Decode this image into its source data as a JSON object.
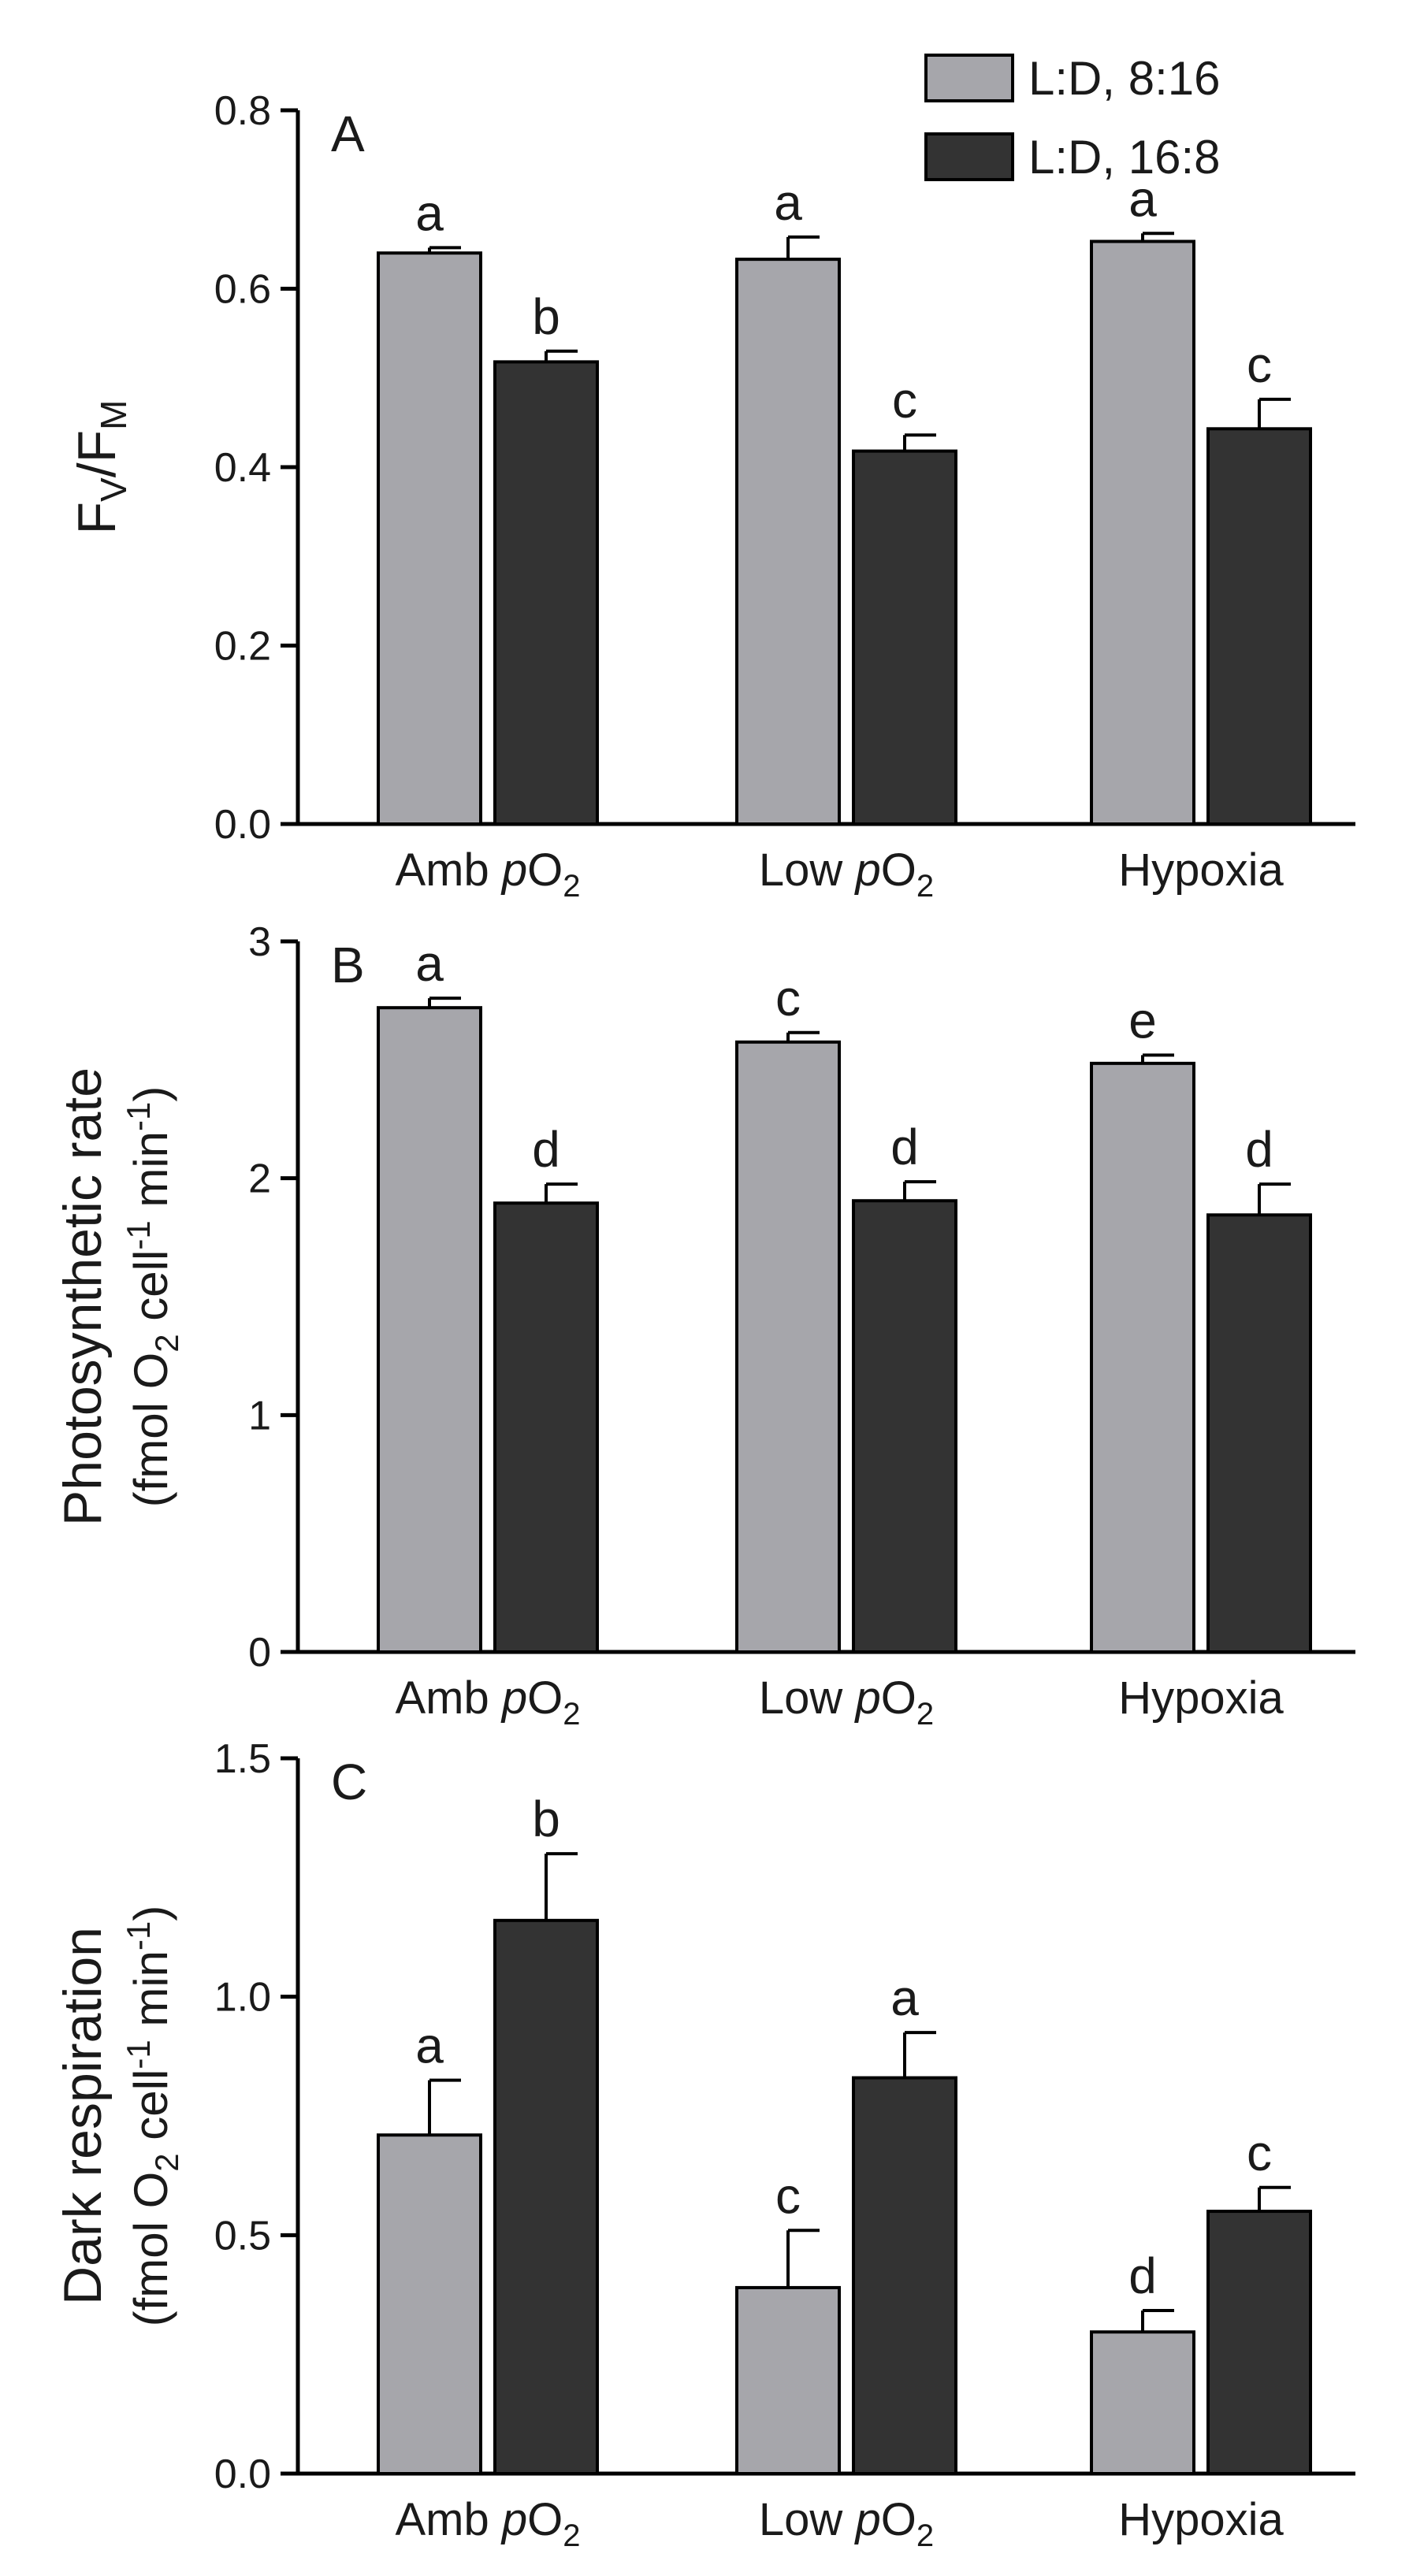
{
  "colors": {
    "series1": "#a6a6ab",
    "series2": "#333333"
  },
  "legend": [
    {
      "label": "L:D, 8:16",
      "color": "#a6a6ab"
    },
    {
      "label": "L:D, 16:8",
      "color": "#333333"
    }
  ],
  "chart_data": [
    {
      "type": "bar",
      "panel": "A",
      "ylabel_main": "F",
      "ylabel_sub1": "V",
      "ylabel_mid": "/F",
      "ylabel_sub2": "M",
      "ylim": [
        0,
        0.8
      ],
      "yticks": [
        "0.0",
        "0.2",
        "0.4",
        "0.6",
        "0.8"
      ],
      "categories": [
        {
          "pre": "Amb ",
          "italic": "p",
          "mid": "O",
          "sub": "2"
        },
        {
          "pre": "Low ",
          "italic": "p",
          "mid": "O",
          "sub": "2"
        },
        {
          "pre": "Hypoxia",
          "italic": "",
          "mid": "",
          "sub": ""
        }
      ],
      "series": [
        {
          "name": "L:D, 8:16",
          "values": [
            0.64,
            0.633,
            0.653
          ],
          "errors": [
            0.006,
            0.025,
            0.009
          ],
          "letters": [
            "a",
            "a",
            "a"
          ]
        },
        {
          "name": "L:D, 16:8",
          "values": [
            0.518,
            0.418,
            0.443
          ],
          "errors": [
            0.012,
            0.018,
            0.033
          ],
          "letters": [
            "b",
            "c",
            "c"
          ]
        }
      ]
    },
    {
      "type": "bar",
      "panel": "B",
      "ylabel_line1": "Photosynthetic rate",
      "ylabel_line2": {
        "pre": "(fmol O",
        "sub": "2",
        "mid": " cell",
        "sup1": "-1",
        "post": " min",
        "sup2": "-1",
        "end": ")"
      },
      "ylim": [
        0,
        3
      ],
      "yticks": [
        "0",
        "1",
        "2",
        "3"
      ],
      "categories": [
        {
          "pre": "Amb ",
          "italic": "p",
          "mid": "O",
          "sub": "2"
        },
        {
          "pre": "Low ",
          "italic": "p",
          "mid": "O",
          "sub": "2"
        },
        {
          "pre": "Hypoxia",
          "italic": "",
          "mid": "",
          "sub": ""
        }
      ],
      "series": [
        {
          "name": "L:D, 8:16",
          "values": [
            2.72,
            2.575,
            2.485
          ],
          "errors": [
            0.04,
            0.04,
            0.035
          ],
          "letters": [
            "a",
            "c",
            "e"
          ]
        },
        {
          "name": "L:D, 16:8",
          "values": [
            1.895,
            1.905,
            1.845
          ],
          "errors": [
            0.08,
            0.08,
            0.13
          ],
          "letters": [
            "d",
            "d",
            "d"
          ]
        }
      ]
    },
    {
      "type": "bar",
      "panel": "C",
      "ylabel_line1": "Dark respiration",
      "ylabel_line2": {
        "pre": "(fmol O",
        "sub": "2",
        "mid": " cell",
        "sup1": "-1",
        "post": " min",
        "sup2": "-1",
        "end": ")"
      },
      "ylim": [
        0,
        1.5
      ],
      "yticks": [
        "0.0",
        "0.5",
        "1.0",
        "1.5"
      ],
      "categories": [
        {
          "pre": "Amb ",
          "italic": "p",
          "mid": "O",
          "sub": "2"
        },
        {
          "pre": "Low ",
          "italic": "p",
          "mid": "O",
          "sub": "2"
        },
        {
          "pre": "Hypoxia",
          "italic": "",
          "mid": "",
          "sub": ""
        }
      ],
      "series": [
        {
          "name": "L:D, 8:16",
          "values": [
            0.71,
            0.39,
            0.297
          ],
          "errors": [
            0.115,
            0.12,
            0.045
          ],
          "letters": [
            "a",
            "c",
            "d"
          ]
        },
        {
          "name": "L:D, 16:8",
          "values": [
            1.16,
            0.83,
            0.55
          ],
          "errors": [
            0.14,
            0.095,
            0.05
          ],
          "letters": [
            "b",
            "a",
            "c"
          ]
        }
      ]
    }
  ]
}
